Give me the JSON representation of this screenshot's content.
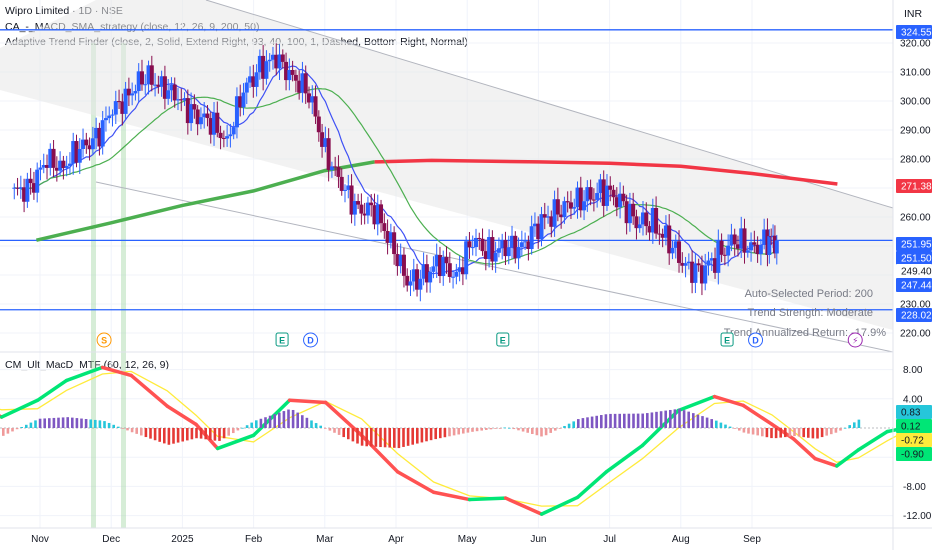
{
  "header": {
    "symbol_line": "Wipro Limited · 1D · NSE",
    "indicator_1": "CA_-_MACD_SMA_strategy (close, 12, 26, 9, 200, 50)",
    "indicator_2": "Adaptive Trend Finder (close, 2, Solid, Extend Right, 93, 40, 100, 1, Dashed, Bottom Right, Normal)",
    "currency": "INR"
  },
  "colors": {
    "up": "#2962ff",
    "down": "#880e4f",
    "ma_slow": "#4caf50",
    "ma_fast_red": "#f23645",
    "ma_fast_blue": "#3f51f5",
    "hline": "#2962ff",
    "grid": "#f0f3fa",
    "channel_fill": "#e8e8e8",
    "channel_line": "#b2b5be",
    "vband": "#a5d6a7",
    "macd_green": "#00e676",
    "macd_red": "#ff5252",
    "macd_yellow": "#ffeb3b"
  },
  "price_axis": {
    "ticks": [
      "320.00",
      "310.00",
      "300.00",
      "290.00",
      "280.00",
      "270.00",
      "260.00",
      "250.00",
      "240.00",
      "230.00",
      "220.00"
    ]
  },
  "price_tags": [
    {
      "label": "324.55",
      "value": 324.55,
      "bg": "#2962ff",
      "fg": "#ffffff"
    },
    {
      "label": "271.38",
      "value": 271.38,
      "bg": "#f23645",
      "fg": "#ffffff"
    },
    {
      "label": "251.95",
      "value": 251.95,
      "bg": "#2962ff",
      "fg": "#ffffff"
    },
    {
      "label": "251.50",
      "value": 251.5,
      "bg": "#2962ff",
      "fg": "#ffffff"
    },
    {
      "label": "249.40",
      "value": 249.4,
      "bg": "#ffffff",
      "fg": "#131722"
    },
    {
      "label": "247.44",
      "value": 247.44,
      "bg": "#2962ff",
      "fg": "#ffffff"
    },
    {
      "label": "228.02",
      "value": 228.02,
      "bg": "#2962ff",
      "fg": "#ffffff"
    }
  ],
  "hlines": [
    324.55,
    251.95,
    228.02
  ],
  "trend_stats": {
    "period": "Auto-Selected Period: 200",
    "strength": "Trend Strength: Moderate",
    "return": "Trend Annualized Return: -17.9%"
  },
  "event_markers": [
    {
      "label": "S",
      "month_pos": 0.9,
      "color": "#ff9800",
      "kind": "circle"
    },
    {
      "label": "E",
      "month_pos": 3.4,
      "color": "#089981",
      "kind": "square"
    },
    {
      "label": "D",
      "month_pos": 3.8,
      "color": "#2962ff",
      "kind": "circle"
    },
    {
      "label": "E",
      "month_pos": 6.5,
      "color": "#089981",
      "kind": "square"
    },
    {
      "label": "E",
      "month_pos": 9.65,
      "color": "#089981",
      "kind": "square"
    },
    {
      "label": "D",
      "month_pos": 10.05,
      "color": "#2962ff",
      "kind": "circle"
    },
    {
      "label": "⚡",
      "month_pos": 11.45,
      "color": "#9c27b0",
      "kind": "circle"
    }
  ],
  "macd_panel": {
    "title": "CM_Ult_MacD_MTF (60, 12, 26, 9)",
    "ticks": [
      "8.00",
      "4.00",
      "-4.00",
      "-8.00",
      "-12.00"
    ],
    "tags": [
      {
        "label": "0.83",
        "value": 0.83,
        "bg": "#26c6da",
        "fg": "#131722"
      },
      {
        "label": "0.12",
        "value": 0.12,
        "bg": "#00e676",
        "fg": "#131722"
      },
      {
        "label": "-0.72",
        "value": -0.72,
        "bg": "#ffeb3b",
        "fg": "#131722"
      },
      {
        "label": "-0.90",
        "value": -0.9,
        "bg": "#00e676",
        "fg": "#131722"
      }
    ]
  },
  "time_axis": {
    "labels": [
      {
        "text": "Nov",
        "month_pos": 0.0
      },
      {
        "text": "Dec",
        "month_pos": 1.0
      },
      {
        "text": "2025",
        "month_pos": 2.0
      },
      {
        "text": "Feb",
        "month_pos": 3.0
      },
      {
        "text": "Mar",
        "month_pos": 4.0
      },
      {
        "text": "Apr",
        "month_pos": 5.0
      },
      {
        "text": "May",
        "month_pos": 6.0
      },
      {
        "text": "Jun",
        "month_pos": 7.0
      },
      {
        "text": "Jul",
        "month_pos": 8.0
      },
      {
        "text": "Aug",
        "month_pos": 9.0
      },
      {
        "text": "Sep",
        "month_pos": 10.0
      }
    ]
  },
  "chart_data": {
    "type": "candlestick",
    "title": "Wipro Limited · 1D · NSE",
    "currency": "INR",
    "ylim": [
      218,
      326
    ],
    "x_axis": "months (Nov 2024 – Sep 2025)",
    "closes_approx": [
      {
        "date": "2024-10-21",
        "close": 268
      },
      {
        "date": "2024-10-28",
        "close": 271
      },
      {
        "date": "2024-11-04",
        "close": 279
      },
      {
        "date": "2024-11-11",
        "close": 278
      },
      {
        "date": "2024-11-18",
        "close": 283
      },
      {
        "date": "2024-11-25",
        "close": 288
      },
      {
        "date": "2024-12-02",
        "close": 296
      },
      {
        "date": "2024-12-09",
        "close": 303
      },
      {
        "date": "2024-12-16",
        "close": 308
      },
      {
        "date": "2024-12-23",
        "close": 306
      },
      {
        "date": "2024-12-30",
        "close": 300
      },
      {
        "date": "2025-01-06",
        "close": 296
      },
      {
        "date": "2025-01-13",
        "close": 292
      },
      {
        "date": "2025-01-20",
        "close": 287
      },
      {
        "date": "2025-01-27",
        "close": 303
      },
      {
        "date": "2025-02-03",
        "close": 312
      },
      {
        "date": "2025-02-10",
        "close": 314
      },
      {
        "date": "2025-02-17",
        "close": 309
      },
      {
        "date": "2025-02-24",
        "close": 302
      },
      {
        "date": "2025-03-03",
        "close": 283
      },
      {
        "date": "2025-03-10",
        "close": 270
      },
      {
        "date": "2025-03-17",
        "close": 263
      },
      {
        "date": "2025-03-24",
        "close": 262
      },
      {
        "date": "2025-03-31",
        "close": 252
      },
      {
        "date": "2025-04-07",
        "close": 237
      },
      {
        "date": "2025-04-14",
        "close": 240
      },
      {
        "date": "2025-04-21",
        "close": 244
      },
      {
        "date": "2025-04-28",
        "close": 240
      },
      {
        "date": "2025-05-05",
        "close": 252
      },
      {
        "date": "2025-05-12",
        "close": 248
      },
      {
        "date": "2025-05-19",
        "close": 249
      },
      {
        "date": "2025-05-26",
        "close": 250
      },
      {
        "date": "2025-06-02",
        "close": 257
      },
      {
        "date": "2025-06-09",
        "close": 262
      },
      {
        "date": "2025-06-16",
        "close": 264
      },
      {
        "date": "2025-06-23",
        "close": 267
      },
      {
        "date": "2025-06-30",
        "close": 269
      },
      {
        "date": "2025-07-07",
        "close": 266
      },
      {
        "date": "2025-07-14",
        "close": 258
      },
      {
        "date": "2025-07-21",
        "close": 258
      },
      {
        "date": "2025-07-28",
        "close": 251
      },
      {
        "date": "2025-08-04",
        "close": 243
      },
      {
        "date": "2025-08-11",
        "close": 241
      },
      {
        "date": "2025-08-18",
        "close": 247
      },
      {
        "date": "2025-08-25",
        "close": 252
      },
      {
        "date": "2025-09-01",
        "close": 249
      },
      {
        "date": "2025-09-08",
        "close": 252
      },
      {
        "date": "2025-09-12",
        "close": 251.95
      }
    ],
    "series": [
      {
        "name": "SMA 200 (green→red)",
        "last": 271.38
      },
      {
        "name": "SMA 50 (fast)",
        "last": 251.5
      }
    ],
    "horizontal_levels": [
      324.55,
      251.95,
      228.02
    ],
    "macd_last": {
      "hist": 0.83,
      "macd": 0.12,
      "signal": -0.72,
      "other": -0.9
    },
    "macd_ylim": [
      -13,
      9
    ]
  }
}
